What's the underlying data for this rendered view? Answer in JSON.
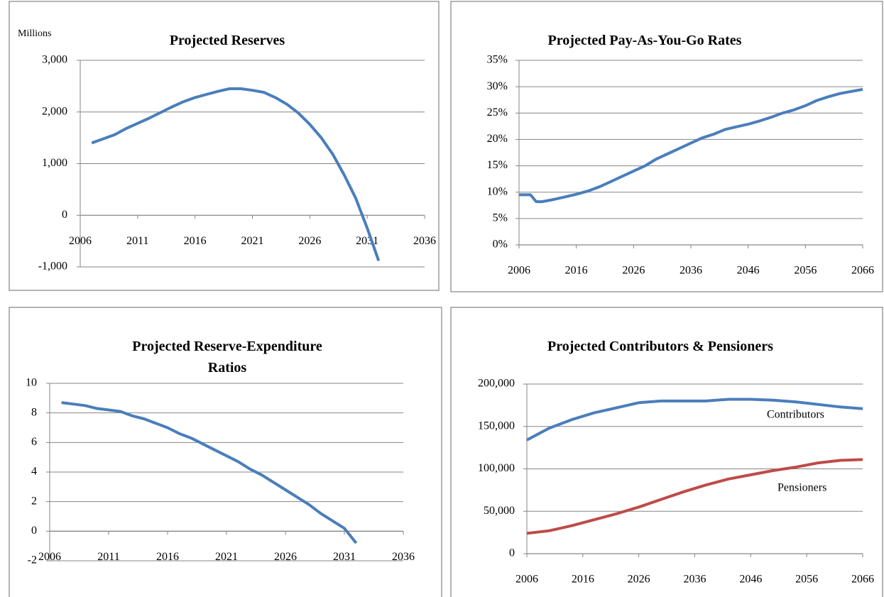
{
  "chart_data": [
    {
      "type": "line",
      "title": "Projected Reserves",
      "ylabel": "Millions",
      "x": [
        2007,
        2008,
        2009,
        2010,
        2011,
        2012,
        2013,
        2014,
        2015,
        2016,
        2017,
        2018,
        2019,
        2020,
        2021,
        2022,
        2023,
        2024,
        2025,
        2026,
        2027,
        2028,
        2029,
        2030,
        2031,
        2032
      ],
      "series": [
        {
          "name": "Reserves",
          "color": "#4a7ebb",
          "values": [
            1400,
            1480,
            1560,
            1680,
            1780,
            1880,
            1990,
            2100,
            2200,
            2280,
            2340,
            2400,
            2450,
            2450,
            2420,
            2380,
            2280,
            2150,
            1980,
            1760,
            1500,
            1180,
            780,
            330,
            -250,
            -880
          ]
        }
      ],
      "xlim": [
        2006,
        2036
      ],
      "xticks": [
        2006,
        2011,
        2016,
        2021,
        2026,
        2031,
        2036
      ],
      "ylim": [
        -1000,
        3000
      ],
      "yticks": [
        {
          "value": -1000,
          "label": "-1,000"
        },
        0,
        {
          "value": 1000,
          "label": "1,000"
        },
        {
          "value": 2000,
          "label": "2,000"
        },
        {
          "value": 3000,
          "label": "3,000"
        }
      ],
      "grid": true
    },
    {
      "type": "line",
      "title": "Projected Pay-As-You-Go Rates",
      "x": [
        2006,
        2008,
        2009,
        2010,
        2012,
        2014,
        2016,
        2018,
        2020,
        2022,
        2024,
        2026,
        2028,
        2030,
        2032,
        2034,
        2036,
        2038,
        2040,
        2042,
        2044,
        2046,
        2048,
        2050,
        2052,
        2054,
        2056,
        2058,
        2060,
        2062,
        2064,
        2066
      ],
      "series": [
        {
          "name": "Pay-As-You-Go Rate",
          "color": "#4a7ebb",
          "values": [
            9.5,
            9.5,
            8.2,
            8.2,
            8.6,
            9.1,
            9.6,
            10.2,
            11.0,
            12.0,
            13.0,
            14.0,
            15.0,
            16.3,
            17.3,
            18.3,
            19.3,
            20.3,
            21.0,
            21.9,
            22.4,
            22.9,
            23.5,
            24.2,
            25.0,
            25.6,
            26.4,
            27.4,
            28.1,
            28.7,
            29.1,
            29.5
          ]
        }
      ],
      "xlim": [
        2006,
        2066
      ],
      "xticks": [
        2006,
        2016,
        2026,
        2036,
        2046,
        2056,
        2066
      ],
      "ylim": [
        0,
        35
      ],
      "yticks": [
        {
          "value": 0,
          "label": "0%"
        },
        {
          "value": 5,
          "label": "5%"
        },
        {
          "value": 10,
          "label": "10%"
        },
        {
          "value": 15,
          "label": "15%"
        },
        {
          "value": 20,
          "label": "20%"
        },
        {
          "value": 25,
          "label": "25%"
        },
        {
          "value": 30,
          "label": "30%"
        },
        {
          "value": 35,
          "label": "35%"
        }
      ],
      "grid": true
    },
    {
      "type": "line",
      "title": "Projected Reserve-Expenditure Ratios",
      "x": [
        2007,
        2008,
        2009,
        2010,
        2011,
        2012,
        2013,
        2014,
        2015,
        2016,
        2017,
        2018,
        2019,
        2020,
        2021,
        2022,
        2023,
        2024,
        2025,
        2026,
        2027,
        2028,
        2029,
        2030,
        2031,
        2032
      ],
      "series": [
        {
          "name": "Ratio",
          "color": "#4a7ebb",
          "values": [
            8.7,
            8.6,
            8.5,
            8.3,
            8.2,
            8.1,
            7.8,
            7.6,
            7.3,
            7.0,
            6.6,
            6.3,
            5.9,
            5.5,
            5.1,
            4.7,
            4.2,
            3.8,
            3.3,
            2.8,
            2.3,
            1.8,
            1.2,
            0.7,
            0.2,
            -0.8
          ]
        }
      ],
      "xlim": [
        2006,
        2036
      ],
      "xticks": [
        2006,
        2011,
        2016,
        2021,
        2026,
        2031,
        2036
      ],
      "ylim": [
        -2,
        10
      ],
      "yticks": [
        -2,
        0,
        2,
        4,
        6,
        8,
        10
      ],
      "grid": true
    },
    {
      "type": "line",
      "title": "Projected Contributors & Pensioners",
      "x": [
        2006,
        2010,
        2014,
        2018,
        2022,
        2026,
        2030,
        2034,
        2038,
        2042,
        2046,
        2050,
        2054,
        2058,
        2062,
        2066
      ],
      "series": [
        {
          "name": "Contributors",
          "color": "#4a7ebb",
          "values": [
            134000,
            148000,
            158000,
            166000,
            172000,
            178000,
            180000,
            180000,
            180000,
            182000,
            182000,
            181000,
            179000,
            176000,
            173000,
            171000
          ]
        },
        {
          "name": "Pensioners",
          "color": "#be4b48",
          "values": [
            24000,
            27000,
            33000,
            40000,
            47000,
            55000,
            64000,
            73000,
            81000,
            88000,
            93000,
            98000,
            102000,
            107000,
            110000,
            111000
          ]
        }
      ],
      "xlim": [
        2006,
        2066
      ],
      "xticks": [
        2006,
        2016,
        2026,
        2036,
        2046,
        2056,
        2066
      ],
      "ylim": [
        0,
        200000
      ],
      "yticks": [
        0,
        {
          "value": 50000,
          "label": "50,000"
        },
        {
          "value": 100000,
          "label": "100,000"
        },
        {
          "value": 150000,
          "label": "150,000"
        },
        {
          "value": 200000,
          "label": "200,000"
        }
      ],
      "grid": true
    }
  ]
}
